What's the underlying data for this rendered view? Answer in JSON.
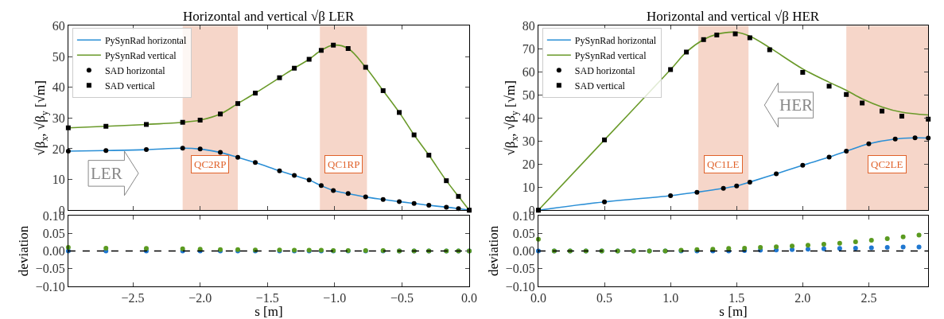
{
  "chart_data": [
    {
      "type": "line",
      "title": "Horizontal and vertical √β LER",
      "ylabel": "√β$_{x}$, √β$_{y}$ [√m]",
      "xlim": [
        -2.98,
        0
      ],
      "xticks": [
        -2.5,
        -2.0,
        -1.5,
        -1.0,
        -0.5,
        0
      ],
      "ylim": [
        0,
        60
      ],
      "yticks": [
        0,
        10,
        20,
        30,
        40,
        50,
        60
      ],
      "tick_labels": "y",
      "grid": false,
      "legend": "top left",
      "bands": [
        {
          "axis": "x",
          "from": -2.13,
          "to": -1.72,
          "label": "QC2RP",
          "color": "#f6d6c9"
        },
        {
          "axis": "x",
          "from": -1.11,
          "to": -0.76,
          "label": "QC1RP",
          "color": "#f6d6c9"
        }
      ],
      "annotations": [
        "LER"
      ],
      "series": [
        {
          "name": "PySynRad horizontal",
          "type": "line",
          "marker": "none",
          "color": "#2b8fd6",
          "x": [
            -2.98,
            -2.7,
            -2.4,
            -2.13,
            -2.0,
            -1.85,
            -1.72,
            -1.59,
            -1.41,
            -1.3,
            -1.19,
            -1.1,
            -1.01,
            -0.9,
            -0.77,
            -0.64,
            -0.52,
            -0.41,
            -0.3,
            -0.17,
            -0.08,
            0
          ],
          "values": [
            19.2,
            19.4,
            19.7,
            20.2,
            19.9,
            18.8,
            17.2,
            15.5,
            12.8,
            11.3,
            9.8,
            8.0,
            6.4,
            5.4,
            4.3,
            3.5,
            2.8,
            2.2,
            1.6,
            1.0,
            0.5,
            0
          ]
        },
        {
          "name": "PySynRad vertical",
          "type": "line",
          "marker": "none",
          "color": "#6a9a2a",
          "x": [
            -2.98,
            -2.7,
            -2.4,
            -2.13,
            -2.0,
            -1.85,
            -1.72,
            -1.59,
            -1.41,
            -1.3,
            -1.19,
            -1.1,
            -1.01,
            -0.9,
            -0.77,
            -0.64,
            -0.52,
            -0.41,
            -0.3,
            -0.17,
            -0.08,
            0
          ],
          "values": [
            26.8,
            27.3,
            27.9,
            28.6,
            29.3,
            31.3,
            34.7,
            38.1,
            43.1,
            46.2,
            49.1,
            52.0,
            53.7,
            52.6,
            46.5,
            38.9,
            31.8,
            24.5,
            17.9,
            9.6,
            4.5,
            0
          ]
        },
        {
          "name": "SAD horizontal",
          "type": "scatter",
          "marker": "circle",
          "color": "#000000",
          "x": [
            -2.98,
            -2.7,
            -2.4,
            -2.13,
            -2.0,
            -1.85,
            -1.72,
            -1.59,
            -1.41,
            -1.3,
            -1.19,
            -1.1,
            -1.01,
            -0.9,
            -0.77,
            -0.64,
            -0.52,
            -0.41,
            -0.3,
            -0.17,
            -0.08,
            0
          ],
          "values": [
            19.2,
            19.4,
            19.7,
            20.2,
            19.9,
            18.8,
            17.2,
            15.5,
            12.8,
            11.3,
            9.8,
            8.0,
            6.4,
            5.4,
            4.3,
            3.5,
            2.8,
            2.2,
            1.6,
            1.0,
            0.5,
            0
          ]
        },
        {
          "name": "SAD vertical",
          "type": "scatter",
          "marker": "square",
          "color": "#000000",
          "x": [
            -2.98,
            -2.7,
            -2.4,
            -2.13,
            -2.0,
            -1.85,
            -1.72,
            -1.59,
            -1.41,
            -1.3,
            -1.19,
            -1.1,
            -1.01,
            -0.9,
            -0.77,
            -0.64,
            -0.52,
            -0.41,
            -0.3,
            -0.17,
            -0.08,
            0
          ],
          "values": [
            26.8,
            27.3,
            27.9,
            28.6,
            29.3,
            31.3,
            34.7,
            38.1,
            43.1,
            46.2,
            49.1,
            52.0,
            53.7,
            52.6,
            46.5,
            38.9,
            31.8,
            24.5,
            17.9,
            9.6,
            4.5,
            0
          ]
        }
      ]
    },
    {
      "type": "line",
      "title": "Horizontal and vertical √β HER",
      "ylabel": "√β$_{x}$, √β$_{y}$ [√m]",
      "xlim": [
        0,
        2.95
      ],
      "xticks": [
        0,
        0.5,
        1.0,
        1.5,
        2.0,
        2.5
      ],
      "ylim": [
        0,
        80
      ],
      "yticks": [
        0,
        10,
        20,
        30,
        40,
        50,
        60,
        70,
        80
      ],
      "tick_labels": "y",
      "grid": false,
      "legend": "top left",
      "bands": [
        {
          "axis": "x",
          "from": 1.21,
          "to": 1.59,
          "label": "QC1LE",
          "color": "#f6d6c9"
        },
        {
          "axis": "x",
          "from": 2.33,
          "to": 2.95,
          "label": "QC2LE",
          "color": "#f6d6c9"
        }
      ],
      "annotations": [
        "HER"
      ],
      "series": [
        {
          "name": "PySynRad horizontal",
          "type": "line",
          "marker": "none",
          "color": "#2b8fd6",
          "x": [
            0,
            0.5,
            1.0,
            1.2,
            1.4,
            1.5,
            1.6,
            1.8,
            2.0,
            2.2,
            2.33,
            2.5,
            2.7,
            2.85,
            2.95
          ],
          "values": [
            0,
            3.6,
            6.3,
            7.8,
            9.5,
            10.5,
            12.2,
            15.8,
            19.5,
            23.0,
            25.6,
            28.8,
            30.9,
            31.4,
            31.3
          ]
        },
        {
          "name": "PySynRad vertical",
          "type": "line",
          "marker": "none",
          "color": "#6a9a2a",
          "x": [
            0,
            0.5,
            1.0,
            1.12,
            1.25,
            1.35,
            1.49,
            1.6,
            1.75,
            2.0,
            2.2,
            2.33,
            2.45,
            2.6,
            2.75,
            2.95
          ],
          "values": [
            0,
            30.5,
            61.0,
            68.6,
            74.0,
            76.3,
            77.2,
            75.5,
            70.5,
            61.3,
            55.5,
            52.0,
            48.3,
            44.8,
            42.5,
            41.3
          ]
        },
        {
          "name": "SAD horizontal",
          "type": "scatter",
          "marker": "circle",
          "color": "#000000",
          "x": [
            0,
            0.5,
            1.0,
            1.2,
            1.4,
            1.5,
            1.6,
            1.8,
            2.0,
            2.2,
            2.33,
            2.5,
            2.7,
            2.85,
            2.95
          ],
          "values": [
            0,
            3.6,
            6.3,
            7.8,
            9.5,
            10.5,
            12.2,
            15.8,
            19.5,
            23.0,
            25.6,
            28.8,
            30.9,
            31.4,
            31.3
          ]
        },
        {
          "name": "SAD vertical",
          "type": "scatter",
          "marker": "square",
          "color": "#000000",
          "x": [
            0,
            0.5,
            1.0,
            1.12,
            1.25,
            1.35,
            1.49,
            1.6,
            1.75,
            2.0,
            2.2,
            2.33,
            2.45,
            2.6,
            2.75,
            2.95
          ],
          "values": [
            0,
            30.5,
            61.0,
            68.6,
            74.0,
            76.0,
            76.5,
            74.8,
            69.6,
            59.8,
            53.8,
            50.2,
            46.5,
            43.0,
            40.8,
            39.5
          ]
        }
      ]
    },
    {
      "type": "scatter",
      "xlabel": "s [m]",
      "ylabel": "deviation",
      "xlim": [
        -2.98,
        0
      ],
      "xticks": [
        {
          "value": -2.5,
          "label": "−2.5"
        },
        {
          "value": -2.0,
          "label": "−2.0"
        },
        {
          "value": -1.5,
          "label": "−1.5"
        },
        {
          "value": -1.0,
          "label": "−1.0"
        },
        {
          "value": -0.5,
          "label": "−0.5"
        },
        {
          "value": 0,
          "label": "0.0"
        }
      ],
      "ylim": [
        -0.1,
        0.1
      ],
      "yticks": [
        {
          "value": -0.1,
          "label": "−0.10"
        },
        {
          "value": -0.05,
          "label": "−0.05"
        },
        {
          "value": 0,
          "label": "0.00"
        },
        {
          "value": 0.05,
          "label": "0.05"
        },
        {
          "value": 0.1,
          "label": "0.10"
        }
      ],
      "grid": false,
      "ref_lines": [
        {
          "axis": "y",
          "value": 0,
          "color": "#000000",
          "line_style": "dashed"
        }
      ],
      "series": [
        {
          "color": "#1f77d0",
          "marker": "circle",
          "x": [
            -2.98,
            -2.7,
            -2.4,
            -2.13,
            -2.0,
            -1.85,
            -1.72,
            -1.59,
            -1.41,
            -1.3,
            -1.19,
            -1.1,
            -1.01,
            -0.9,
            -0.77,
            -0.64,
            -0.52,
            -0.41,
            -0.3,
            -0.17,
            -0.08,
            0
          ],
          "values": [
            0,
            0,
            0,
            0,
            0,
            0,
            0,
            0,
            0,
            0,
            0,
            0,
            0,
            0,
            0,
            0,
            0,
            0,
            0,
            0,
            0,
            0
          ]
        },
        {
          "color": "#5a9a20",
          "marker": "circle",
          "x": [
            -2.98,
            -2.7,
            -2.4,
            -2.13,
            -2.0,
            -1.85,
            -1.72,
            -1.59,
            -1.41,
            -1.3,
            -1.19,
            -1.1,
            -1.01,
            -0.9,
            -0.77,
            -0.64,
            -0.52,
            -0.41,
            -0.3,
            -0.17,
            -0.08,
            0
          ],
          "values": [
            0.01,
            0.008,
            0.007,
            0.006,
            0.005,
            0.004,
            0.004,
            0.003,
            0.003,
            0.002,
            0.002,
            0.002,
            0.001,
            0.001,
            0.001,
            0.001,
            0,
            0,
            0,
            0,
            0,
            0
          ]
        }
      ]
    },
    {
      "type": "scatter",
      "xlabel": "s [m]",
      "ylabel": "deviation",
      "xlim": [
        0,
        2.95
      ],
      "xticks": [
        {
          "value": 0,
          "label": "0.0"
        },
        {
          "value": 0.5,
          "label": "0.5"
        },
        {
          "value": 1.0,
          "label": "1.0"
        },
        {
          "value": 1.5,
          "label": "1.5"
        },
        {
          "value": 2.0,
          "label": "2.0"
        },
        {
          "value": 2.5,
          "label": "2.5"
        }
      ],
      "ylim": [
        -0.1,
        0.1
      ],
      "yticks": [
        {
          "value": -0.1,
          "label": "−0.10"
        },
        {
          "value": -0.05,
          "label": "−0.05"
        },
        {
          "value": 0,
          "label": "0.00"
        },
        {
          "value": 0.05,
          "label": "0.05"
        },
        {
          "value": 0.1,
          "label": "0.10"
        }
      ],
      "grid": false,
      "ref_lines": [
        {
          "axis": "y",
          "value": 0,
          "color": "#000000",
          "line_style": "dashed"
        }
      ],
      "series": [
        {
          "color": "#1f77d0",
          "marker": "circle",
          "x": [
            0,
            0.12,
            0.24,
            0.36,
            0.48,
            0.6,
            0.72,
            0.84,
            0.96,
            1.08,
            1.2,
            1.32,
            1.44,
            1.56,
            1.68,
            1.8,
            1.92,
            2.04,
            2.16,
            2.28,
            2.4,
            2.52,
            2.64,
            2.76,
            2.88
          ],
          "values": [
            0,
            0,
            0,
            0,
            0,
            0,
            0,
            0,
            0,
            0,
            0,
            0,
            0,
            0.001,
            0.002,
            0.003,
            0.004,
            0.005,
            0.006,
            0.007,
            0.008,
            0.009,
            0.01,
            0.011,
            0.011
          ]
        },
        {
          "color": "#5a9a20",
          "marker": "circle",
          "x": [
            0,
            0.12,
            0.24,
            0.36,
            0.48,
            0.6,
            0.72,
            0.84,
            0.96,
            1.08,
            1.2,
            1.32,
            1.44,
            1.56,
            1.68,
            1.8,
            1.92,
            2.04,
            2.16,
            2.28,
            2.4,
            2.52,
            2.64,
            2.76,
            2.88
          ],
          "values": [
            0.033,
            0,
            0,
            0,
            0,
            0,
            0,
            0,
            0,
            0.002,
            0.004,
            0.005,
            0.007,
            0.008,
            0.01,
            0.012,
            0.014,
            0.016,
            0.019,
            0.022,
            0.026,
            0.03,
            0.035,
            0.04,
            0.045
          ]
        }
      ]
    }
  ]
}
